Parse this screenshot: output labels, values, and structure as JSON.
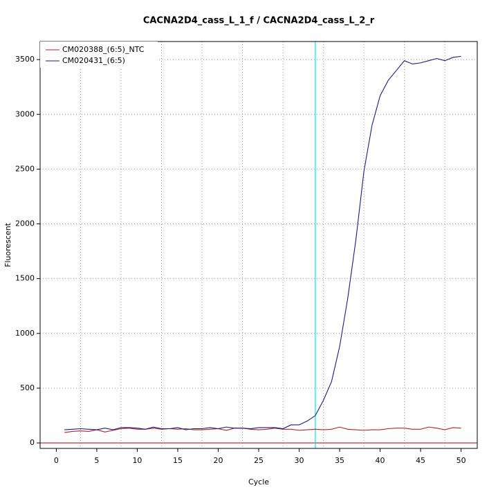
{
  "chart_data": {
    "type": "line",
    "title": "CACNA2D4_cass_L_1_f / CACNA2D4_cass_L_2_r",
    "x_label": "Cycle",
    "y_label": "Fluorescent",
    "x": [
      1,
      2,
      3,
      4,
      5,
      6,
      7,
      8,
      9,
      10,
      11,
      12,
      13,
      14,
      15,
      16,
      17,
      18,
      19,
      20,
      21,
      22,
      23,
      24,
      25,
      26,
      27,
      28,
      29,
      30,
      31,
      32,
      33,
      34,
      35,
      36,
      37,
      38,
      39,
      40,
      41,
      42,
      43,
      44,
      45,
      46,
      47,
      48,
      49,
      50
    ],
    "series": [
      {
        "name": "CM020388_(6:5)_NTC",
        "color": "#b22222",
        "values": [
          95,
          105,
          110,
          105,
          120,
          100,
          115,
          130,
          135,
          125,
          125,
          135,
          125,
          130,
          125,
          130,
          120,
          120,
          125,
          130,
          115,
          135,
          135,
          125,
          120,
          125,
          135,
          125,
          125,
          115,
          120,
          125,
          120,
          125,
          145,
          125,
          120,
          115,
          120,
          120,
          130,
          135,
          135,
          125,
          125,
          145,
          135,
          120,
          140,
          135
        ]
      },
      {
        "name": "CM020431_(6:5)",
        "color": "#1a1a80",
        "values": [
          120,
          125,
          130,
          125,
          120,
          135,
          120,
          140,
          140,
          135,
          125,
          145,
          130,
          130,
          140,
          120,
          130,
          130,
          140,
          130,
          145,
          135,
          135,
          130,
          140,
          140,
          140,
          130,
          165,
          165,
          200,
          250,
          390,
          560,
          880,
          1320,
          1850,
          2480,
          2900,
          3170,
          3310,
          3400,
          3490,
          3460,
          3470,
          3490,
          3510,
          3490,
          3520,
          3530
        ]
      }
    ],
    "xlim": [
      -2,
      52
    ],
    "ylim": [
      -50,
      3665
    ],
    "xticks": [
      0,
      5,
      10,
      15,
      20,
      25,
      30,
      35,
      40,
      45,
      50
    ],
    "yticks": [
      0,
      500,
      1000,
      1500,
      2000,
      2500,
      3000,
      3500
    ],
    "xgrid": [
      3,
      8,
      13,
      18,
      23,
      28,
      33,
      38,
      43,
      48
    ],
    "grid": true,
    "legend": "top-left",
    "threshold": 0,
    "threshold_color": "#b22222",
    "cycle_marker": 32,
    "cycle_marker_color": "#00e5ee"
  }
}
